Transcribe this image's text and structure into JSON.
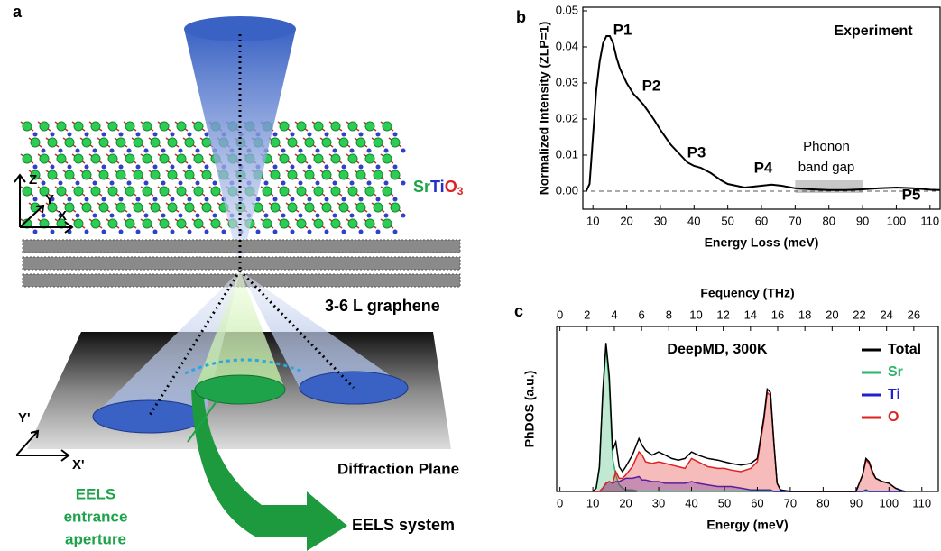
{
  "panel_labels": [
    "a",
    "b",
    "c"
  ],
  "schematic": {
    "formula": {
      "sr": "Sr",
      "ti": "Ti",
      "o": "O",
      "sub": "3"
    },
    "axes_top": {
      "z": "Z",
      "y": "Y",
      "x": "X"
    },
    "graphene": "3-6 L graphene",
    "axes_bottom": {
      "y": "Y'",
      "x": "X'"
    },
    "plane": "Diffraction Plane",
    "aperture": [
      "EELS",
      "entrance",
      "aperture"
    ],
    "system": "EELS system"
  },
  "chart_data": [
    {
      "type": "line",
      "x_label": "Energy Loss (meV)",
      "y_label": "Normalized Intensity (ZLP=1)",
      "annotations": [
        "P1",
        "P2",
        "P3",
        "P4",
        "P5",
        "Experiment"
      ],
      "band_label": [
        "Phonon",
        "band gap"
      ],
      "band": [
        70,
        90
      ],
      "reference_line": 0,
      "color": "#000000",
      "x": [
        8,
        9,
        10,
        11,
        12,
        13,
        14,
        15,
        16,
        17,
        18,
        20,
        22,
        25,
        28,
        30,
        33,
        36,
        38,
        40,
        42,
        45,
        48,
        50,
        55,
        60,
        63,
        66,
        70,
        75,
        80,
        85,
        90,
        95,
        100,
        105,
        110,
        113
      ],
      "values": [
        0.0,
        0.002,
        0.015,
        0.028,
        0.036,
        0.041,
        0.043,
        0.043,
        0.041,
        0.037,
        0.034,
        0.03,
        0.027,
        0.024,
        0.02,
        0.017,
        0.013,
        0.01,
        0.008,
        0.007,
        0.0065,
        0.005,
        0.003,
        0.002,
        0.001,
        0.0015,
        0.0018,
        0.0015,
        0.0008,
        0.0005,
        0.0003,
        0.0003,
        0.0005,
        0.0008,
        0.001,
        0.0008,
        0.0004,
        0.0003
      ],
      "xlim": [
        7,
        113
      ],
      "ylim": [
        -0.005,
        0.051
      ],
      "xticks": [
        10,
        20,
        30,
        40,
        50,
        60,
        70,
        80,
        90,
        100,
        110
      ],
      "yticks": [
        {
          "value": 0,
          "label": "0.00"
        },
        {
          "value": 0.01,
          "label": "0.01"
        },
        {
          "value": 0.02,
          "label": "0.02"
        },
        {
          "value": 0.03,
          "label": "0.03"
        },
        {
          "value": 0.04,
          "label": "0.04"
        },
        {
          "value": 0.05,
          "label": "0.05"
        }
      ]
    },
    {
      "type": "area",
      "x_label": "Energy (meV)",
      "x2_label": "Fequency (THz)",
      "y_label": "PhDOS (a.u.)",
      "annotations": [
        "DeepMD, 300K"
      ],
      "legend": "top-right",
      "x": [
        10,
        11,
        12,
        13,
        14,
        15,
        16,
        17,
        18,
        19,
        20,
        22,
        24,
        25,
        26,
        28,
        30,
        32,
        34,
        36,
        38,
        40,
        42,
        45,
        48,
        50,
        52,
        55,
        58,
        60,
        62,
        63,
        64,
        65,
        66,
        67,
        70,
        80,
        90,
        92,
        93,
        94,
        95,
        96,
        98,
        100,
        102,
        104,
        105
      ],
      "series": [
        {
          "name": "Total",
          "color": "#000000",
          "fill": false,
          "values": [
            0,
            0.02,
            0.15,
            0.6,
            0.9,
            0.7,
            0.25,
            0.3,
            0.15,
            0.12,
            0.15,
            0.22,
            0.32,
            0.28,
            0.25,
            0.22,
            0.24,
            0.22,
            0.2,
            0.19,
            0.2,
            0.24,
            0.22,
            0.2,
            0.19,
            0.18,
            0.17,
            0.16,
            0.17,
            0.2,
            0.45,
            0.62,
            0.6,
            0.3,
            0.05,
            0.01,
            0,
            0,
            0,
            0.1,
            0.2,
            0.18,
            0.12,
            0.08,
            0.06,
            0.05,
            0.02,
            0.005,
            0
          ]
        },
        {
          "name": "Sr",
          "color": "#2db36b",
          "fill": true,
          "values": [
            0,
            0.02,
            0.14,
            0.58,
            0.88,
            0.65,
            0.2,
            0.1,
            0.04,
            0.02,
            0.01,
            0.01,
            0,
            0,
            0,
            0,
            0,
            0,
            0,
            0,
            0,
            0,
            0,
            0,
            0,
            0,
            0,
            0,
            0,
            0,
            0,
            0,
            0,
            0,
            0,
            0,
            0,
            0,
            0,
            0,
            0,
            0,
            0,
            0,
            0,
            0,
            0,
            0,
            0
          ]
        },
        {
          "name": "Ti",
          "color": "#2020d0",
          "fill": true,
          "values": [
            0,
            0,
            0,
            0.02,
            0.05,
            0.06,
            0.05,
            0.06,
            0.06,
            0.07,
            0.08,
            0.08,
            0.09,
            0.07,
            0.07,
            0.06,
            0.06,
            0.05,
            0.05,
            0.05,
            0.05,
            0.06,
            0.05,
            0.04,
            0.03,
            0.03,
            0.03,
            0.02,
            0.01,
            0.01,
            0.01,
            0.01,
            0.01,
            0,
            0,
            0,
            0,
            0,
            0,
            0,
            0.01,
            0,
            0,
            0,
            0,
            0,
            0,
            0,
            0
          ]
        },
        {
          "name": "O",
          "color": "#e02020",
          "fill": true,
          "values": [
            0,
            0,
            0,
            0.02,
            0.05,
            0.06,
            0.05,
            0.12,
            0.08,
            0.08,
            0.1,
            0.15,
            0.24,
            0.22,
            0.18,
            0.17,
            0.18,
            0.17,
            0.16,
            0.15,
            0.14,
            0.2,
            0.18,
            0.15,
            0.14,
            0.14,
            0.13,
            0.12,
            0.14,
            0.18,
            0.43,
            0.6,
            0.58,
            0.3,
            0.05,
            0.01,
            0,
            0,
            0,
            0.1,
            0.19,
            0.17,
            0.11,
            0.08,
            0.06,
            0.05,
            0.02,
            0.005,
            0
          ]
        }
      ],
      "xlim": [
        -1,
        115
      ],
      "ylim": [
        0,
        1
      ],
      "xticks": [
        0,
        10,
        20,
        30,
        40,
        50,
        60,
        70,
        80,
        90,
        100,
        110
      ],
      "x2lim": [
        -0.24,
        27.8
      ],
      "x2ticks": [
        0,
        2,
        4,
        6,
        8,
        10,
        12,
        14,
        16,
        18,
        20,
        22,
        24,
        26
      ]
    }
  ]
}
